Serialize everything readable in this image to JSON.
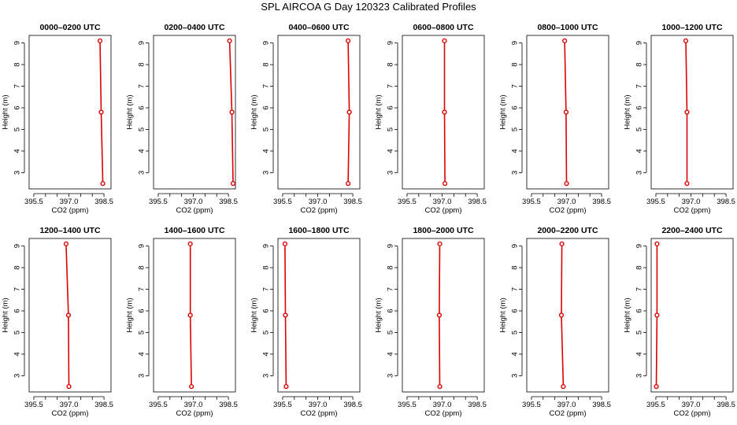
{
  "title": "SPL AIRCOA G  Day 120323  Calibrated Profiles",
  "colors": {
    "line": "#dd0000",
    "axis": "#000000",
    "background": "#ffffff"
  },
  "chart_data": [
    {
      "type": "line",
      "title": "0000–0200 UTC",
      "xlabel": "CO2 (ppm)",
      "ylabel": "Height (m)",
      "xlim": [
        395.3,
        398.8
      ],
      "ylim": [
        2.25,
        9.35
      ],
      "xticks": [
        "395.5",
        "397.0",
        "398.5"
      ],
      "xticks_minor": [
        396.0,
        396.5,
        397.5,
        398.0
      ],
      "yticks": [
        "3",
        "4",
        "5",
        "6",
        "7",
        "8",
        "9"
      ],
      "x": [
        398.45,
        398.38,
        398.33
      ],
      "y": [
        2.5,
        5.8,
        9.1
      ]
    },
    {
      "type": "line",
      "title": "0200–0400 UTC",
      "xlabel": "CO2 (ppm)",
      "ylabel": "Height (m)",
      "xlim": [
        395.3,
        398.8
      ],
      "ylim": [
        2.25,
        9.35
      ],
      "xticks": [
        "395.5",
        "397.0",
        "398.5"
      ],
      "xticks_minor": [
        396.0,
        396.5,
        397.5,
        398.0
      ],
      "yticks": [
        "3",
        "4",
        "5",
        "6",
        "7",
        "8",
        "9"
      ],
      "x": [
        398.7,
        398.65,
        398.55
      ],
      "y": [
        2.5,
        5.8,
        9.1
      ]
    },
    {
      "type": "line",
      "title": "0400–0600 UTC",
      "xlabel": "CO2 (ppm)",
      "ylabel": "Height (m)",
      "xlim": [
        395.3,
        398.8
      ],
      "ylim": [
        2.25,
        9.35
      ],
      "xticks": [
        "395.5",
        "397.0",
        "398.5"
      ],
      "xticks_minor": [
        396.0,
        396.5,
        397.5,
        398.0
      ],
      "yticks": [
        "3",
        "4",
        "5",
        "6",
        "7",
        "8",
        "9"
      ],
      "x": [
        398.3,
        398.35,
        398.3
      ],
      "y": [
        2.5,
        5.8,
        9.1
      ]
    },
    {
      "type": "line",
      "title": "0600–0800 UTC",
      "xlabel": "CO2 (ppm)",
      "ylabel": "Height (m)",
      "xlim": [
        395.3,
        398.8
      ],
      "ylim": [
        2.25,
        9.35
      ],
      "xticks": [
        "395.5",
        "397.0",
        "398.5"
      ],
      "xticks_minor": [
        396.0,
        396.5,
        397.5,
        398.0
      ],
      "yticks": [
        "3",
        "4",
        "5",
        "6",
        "7",
        "8",
        "9"
      ],
      "x": [
        397.12,
        397.1,
        397.1
      ],
      "y": [
        2.5,
        5.8,
        9.1
      ]
    },
    {
      "type": "line",
      "title": "0800–1000 UTC",
      "xlabel": "CO2 (ppm)",
      "ylabel": "Height (m)",
      "xlim": [
        395.3,
        398.8
      ],
      "ylim": [
        2.25,
        9.35
      ],
      "xticks": [
        "395.5",
        "397.0",
        "398.5"
      ],
      "xticks_minor": [
        396.0,
        396.5,
        397.5,
        398.0
      ],
      "yticks": [
        "3",
        "4",
        "5",
        "6",
        "7",
        "8",
        "9"
      ],
      "x": [
        397.0,
        396.98,
        396.92
      ],
      "y": [
        2.5,
        5.8,
        9.1
      ]
    },
    {
      "type": "line",
      "title": "1000–1200 UTC",
      "xlabel": "CO2 (ppm)",
      "ylabel": "Height (m)",
      "xlim": [
        395.3,
        398.8
      ],
      "ylim": [
        2.25,
        9.35
      ],
      "xticks": [
        "395.5",
        "397.0",
        "398.5"
      ],
      "xticks_minor": [
        396.0,
        396.5,
        397.5,
        398.0
      ],
      "yticks": [
        "3",
        "4",
        "5",
        "6",
        "7",
        "8",
        "9"
      ],
      "x": [
        396.83,
        396.83,
        396.78
      ],
      "y": [
        2.5,
        5.8,
        9.1
      ]
    },
    {
      "type": "line",
      "title": "1200–1400 UTC",
      "xlabel": "CO2 (ppm)",
      "ylabel": "Height (m)",
      "xlim": [
        395.3,
        398.8
      ],
      "ylim": [
        2.25,
        9.35
      ],
      "xticks": [
        "395.5",
        "397.0",
        "398.5"
      ],
      "xticks_minor": [
        396.0,
        396.5,
        397.5,
        398.0
      ],
      "yticks": [
        "3",
        "4",
        "5",
        "6",
        "7",
        "8",
        "9"
      ],
      "x": [
        397.0,
        396.98,
        396.88
      ],
      "y": [
        2.5,
        5.8,
        9.1
      ]
    },
    {
      "type": "line",
      "title": "1400–1600 UTC",
      "xlabel": "CO2 (ppm)",
      "ylabel": "Height (m)",
      "xlim": [
        395.3,
        398.8
      ],
      "ylim": [
        2.25,
        9.35
      ],
      "xticks": [
        "395.5",
        "397.0",
        "398.5"
      ],
      "xticks_minor": [
        396.0,
        396.5,
        397.5,
        398.0
      ],
      "yticks": [
        "3",
        "4",
        "5",
        "6",
        "7",
        "8",
        "9"
      ],
      "x": [
        396.92,
        396.87,
        396.87
      ],
      "y": [
        2.5,
        5.8,
        9.1
      ]
    },
    {
      "type": "line",
      "title": "1600–1800 UTC",
      "xlabel": "CO2 (ppm)",
      "ylabel": "Height (m)",
      "xlim": [
        395.3,
        398.8
      ],
      "ylim": [
        2.25,
        9.35
      ],
      "xticks": [
        "395.5",
        "397.0",
        "398.5"
      ],
      "xticks_minor": [
        396.0,
        396.5,
        397.5,
        398.0
      ],
      "yticks": [
        "3",
        "4",
        "5",
        "6",
        "7",
        "8",
        "9"
      ],
      "x": [
        395.65,
        395.62,
        395.6
      ],
      "y": [
        2.5,
        5.8,
        9.1
      ]
    },
    {
      "type": "line",
      "title": "1800–2000 UTC",
      "xlabel": "CO2 (ppm)",
      "ylabel": "Height (m)",
      "xlim": [
        395.3,
        398.8
      ],
      "ylim": [
        2.25,
        9.35
      ],
      "xticks": [
        "395.5",
        "397.0",
        "398.5"
      ],
      "xticks_minor": [
        396.0,
        396.5,
        397.5,
        398.0
      ],
      "yticks": [
        "3",
        "4",
        "5",
        "6",
        "7",
        "8",
        "9"
      ],
      "x": [
        396.9,
        396.88,
        396.9
      ],
      "y": [
        2.5,
        5.8,
        9.1
      ]
    },
    {
      "type": "line",
      "title": "2000–2200 UTC",
      "xlabel": "CO2 (ppm)",
      "ylabel": "Height (m)",
      "xlim": [
        395.3,
        398.8
      ],
      "ylim": [
        2.25,
        9.35
      ],
      "xticks": [
        "395.5",
        "397.0",
        "398.5"
      ],
      "xticks_minor": [
        396.0,
        396.5,
        397.5,
        398.0
      ],
      "yticks": [
        "3",
        "4",
        "5",
        "6",
        "7",
        "8",
        "9"
      ],
      "x": [
        396.86,
        396.78,
        396.8
      ],
      "y": [
        2.5,
        5.8,
        9.1
      ]
    },
    {
      "type": "line",
      "title": "2200–2400 UTC",
      "xlabel": "CO2 (ppm)",
      "ylabel": "Height (m)",
      "xlim": [
        395.3,
        398.8
      ],
      "ylim": [
        2.25,
        9.35
      ],
      "xticks": [
        "395.5",
        "397.0",
        "398.5"
      ],
      "xticks_minor": [
        396.0,
        396.5,
        397.5,
        398.0
      ],
      "yticks": [
        "3",
        "4",
        "5",
        "6",
        "7",
        "8",
        "9"
      ],
      "x": [
        395.52,
        395.55,
        395.55
      ],
      "y": [
        2.5,
        5.8,
        9.1
      ]
    }
  ]
}
